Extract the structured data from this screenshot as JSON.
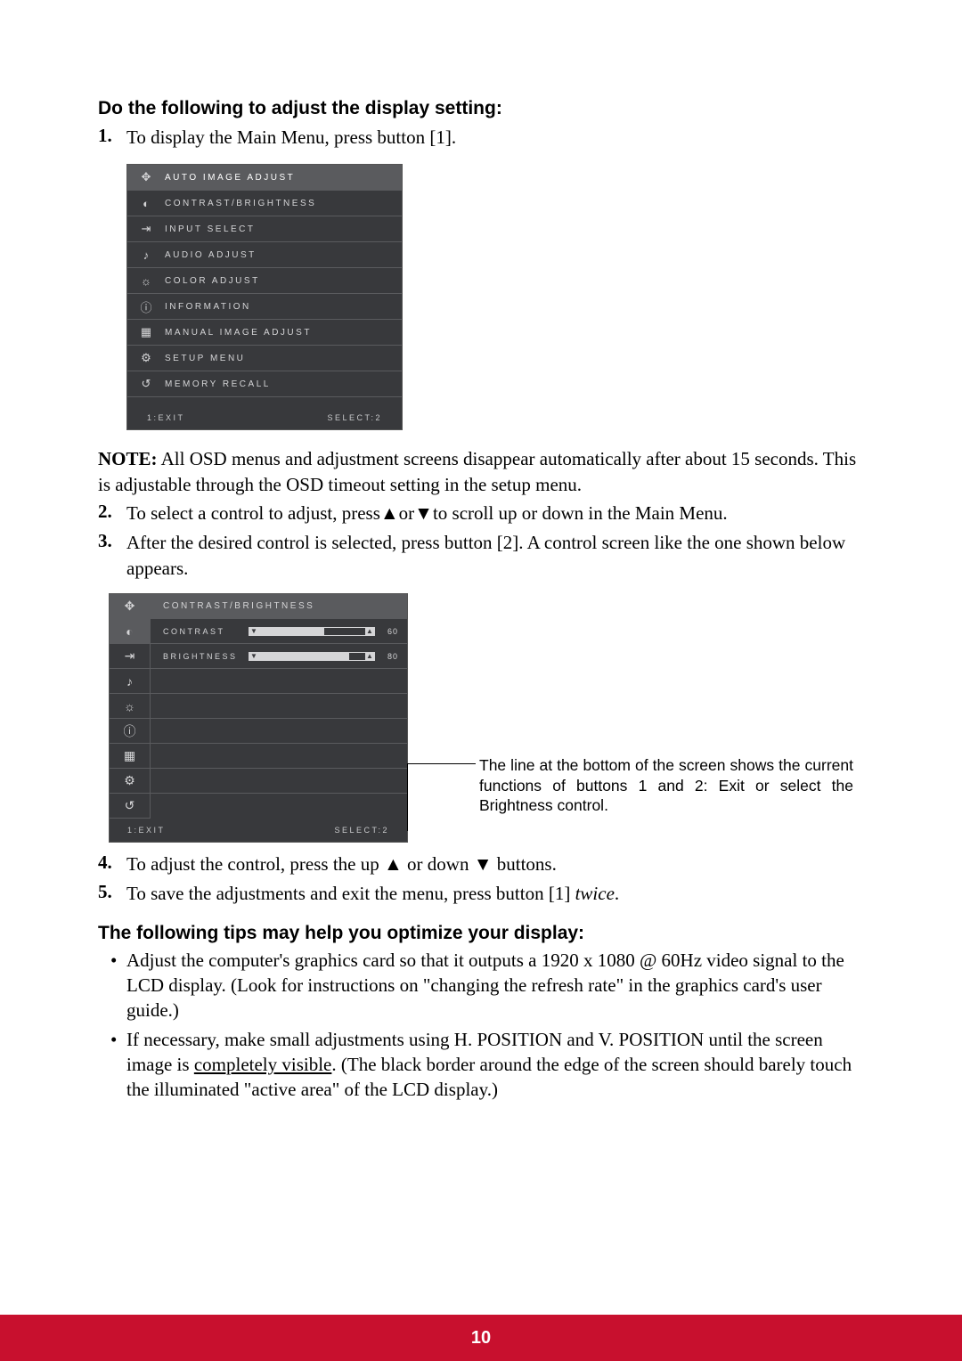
{
  "heading1": "Do the following to adjust the display setting:",
  "step1_num": "1.",
  "step1_text": "To display the Main Menu, press button [1].",
  "osd_main": {
    "items": [
      {
        "label": "AUTO IMAGE ADJUST",
        "icon": "✥",
        "highlight": true
      },
      {
        "label": "CONTRAST/BRIGHTNESS",
        "icon": "◐",
        "highlight": false
      },
      {
        "label": "INPUT SELECT",
        "icon": "⇥",
        "highlight": false
      },
      {
        "label": "AUDIO ADJUST",
        "icon": "♪",
        "highlight": false
      },
      {
        "label": "COLOR ADJUST",
        "icon": "☼",
        "highlight": false
      },
      {
        "label": "INFORMATION",
        "icon": "ⓘ",
        "highlight": false
      },
      {
        "label": "MANUAL IMAGE ADJUST",
        "icon": "▦",
        "highlight": false
      },
      {
        "label": "SETUP MENU",
        "icon": "⚙",
        "highlight": false
      },
      {
        "label": "MEMORY RECALL",
        "icon": "↺",
        "highlight": false
      }
    ],
    "footer_left": "1:EXIT",
    "footer_right": "SELECT:2"
  },
  "note_label": "NOTE:",
  "note_text": " All OSD menus and adjustment screens disappear automatically after about 15 seconds. This is adjustable through the OSD timeout setting in the setup menu.",
  "step2_num": "2.",
  "step2_a": "To select a control to adjust, press",
  "step2_up": "▲",
  "step2_mid": "or",
  "step2_dn": "▼",
  "step2_b": "to scroll up or down in the Main Menu.",
  "step3_num": "3.",
  "step3_text": "After the desired control is selected, press button [2]. A control screen like the one shown below appears.",
  "osd_ctrl": {
    "header": "CONTRAST/BRIGHTNESS",
    "icons": [
      "✥",
      "◐",
      "⇥",
      "♪",
      "☼",
      "ⓘ",
      "▦",
      "⚙",
      "↺"
    ],
    "rows": [
      {
        "label": "CONTRAST",
        "value": "60",
        "fill_pct": 60
      },
      {
        "label": "BRIGHTNESS",
        "value": "80",
        "fill_pct": 80
      }
    ],
    "footer_left": "1:EXIT",
    "footer_right": "SELECT:2"
  },
  "callout": "The line at the bottom of the screen shows the current functions of buttons 1 and 2: Exit or select the Brightness control.",
  "step4_num": "4.",
  "step4_a": "To adjust the control, press the up ",
  "step4_up": "▲",
  "step4_mid": " or down ",
  "step4_dn": "▼",
  "step4_b": " buttons.",
  "step5_num": "5.",
  "step5_a": "To save the adjustments and exit the menu, press button [1] ",
  "step5_i": "twice",
  "step5_b": ".",
  "tips_heading": "The following tips may help you optimize your display:",
  "tip1": "Adjust the computer's graphics card so that it outputs a 1920 x 1080 @ 60Hz video signal to the LCD display. (Look for instructions on \"changing the refresh rate\" in the graphics card's user guide.)",
  "tip2_a": "If necessary, make small adjustments using H. POSITION and V. POSITION until the screen image is ",
  "tip2_u": "completely visible",
  "tip2_b": ". (The black border around the edge of the screen should barely touch the illuminated \"active area\" of the LCD display.)",
  "page_number": "10"
}
